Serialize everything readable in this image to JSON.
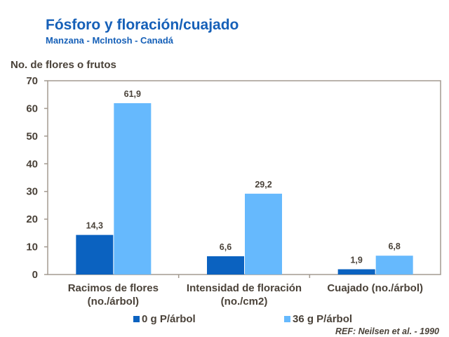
{
  "chart_data": {
    "type": "bar",
    "title": "Fósforo y floración/cuajado",
    "subtitle": "Manzana - McIntosh - Canadá",
    "ylabel": "No. de flores o frutos",
    "xlabel": "",
    "ylim": [
      0,
      70
    ],
    "yticks": [
      0,
      10,
      20,
      30,
      40,
      50,
      60,
      70
    ],
    "grid": false,
    "legend_position": "bottom",
    "categories": [
      [
        "Racimos de flores",
        "(no./árbol)"
      ],
      [
        "Intensidad de floración",
        "(no./cm2)"
      ],
      [
        "Cuajado (no./árbol)"
      ]
    ],
    "series": [
      {
        "name": "0 g P/árbol",
        "color": "#0b62c0",
        "values": [
          14.3,
          6.6,
          1.9
        ],
        "labels": [
          "14,3",
          "6,6",
          "1,9"
        ]
      },
      {
        "name": "36 g P/árbol",
        "color": "#66b9fd",
        "values": [
          61.9,
          29.2,
          6.8
        ],
        "labels": [
          "61,9",
          "29,2",
          "6,8"
        ]
      }
    ],
    "annotation": "REF: Neilsen et al. - 1990"
  }
}
